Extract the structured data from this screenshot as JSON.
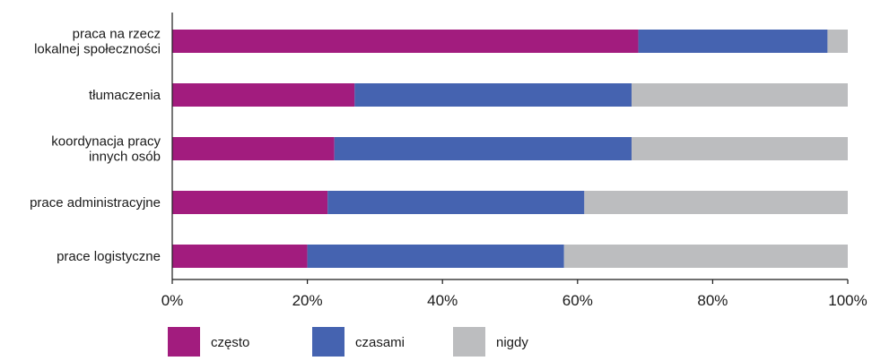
{
  "chart_data": {
    "type": "bar",
    "orientation": "horizontal",
    "stacked": true,
    "categories": [
      [
        "praca na rzecz",
        "lokalnej społeczności"
      ],
      [
        "tłumaczenia"
      ],
      [
        "koordynacja pracy",
        "innych osób"
      ],
      [
        "prace administracyjne"
      ],
      [
        "prace logistyczne"
      ]
    ],
    "series": [
      {
        "name": "często",
        "color": "#a21c7e",
        "values": [
          69,
          27,
          24,
          23,
          20
        ]
      },
      {
        "name": "czasami",
        "color": "#4563b0",
        "values": [
          28,
          41,
          44,
          38,
          38
        ]
      },
      {
        "name": "nigdy",
        "color": "#bcbdbf",
        "values": [
          3,
          32,
          32,
          39,
          42
        ]
      }
    ],
    "xlim": [
      0,
      100
    ],
    "xticks": [
      "0%",
      "20%",
      "40%",
      "60%",
      "80%",
      "100%"
    ],
    "grid": false,
    "legend": "bottom"
  }
}
